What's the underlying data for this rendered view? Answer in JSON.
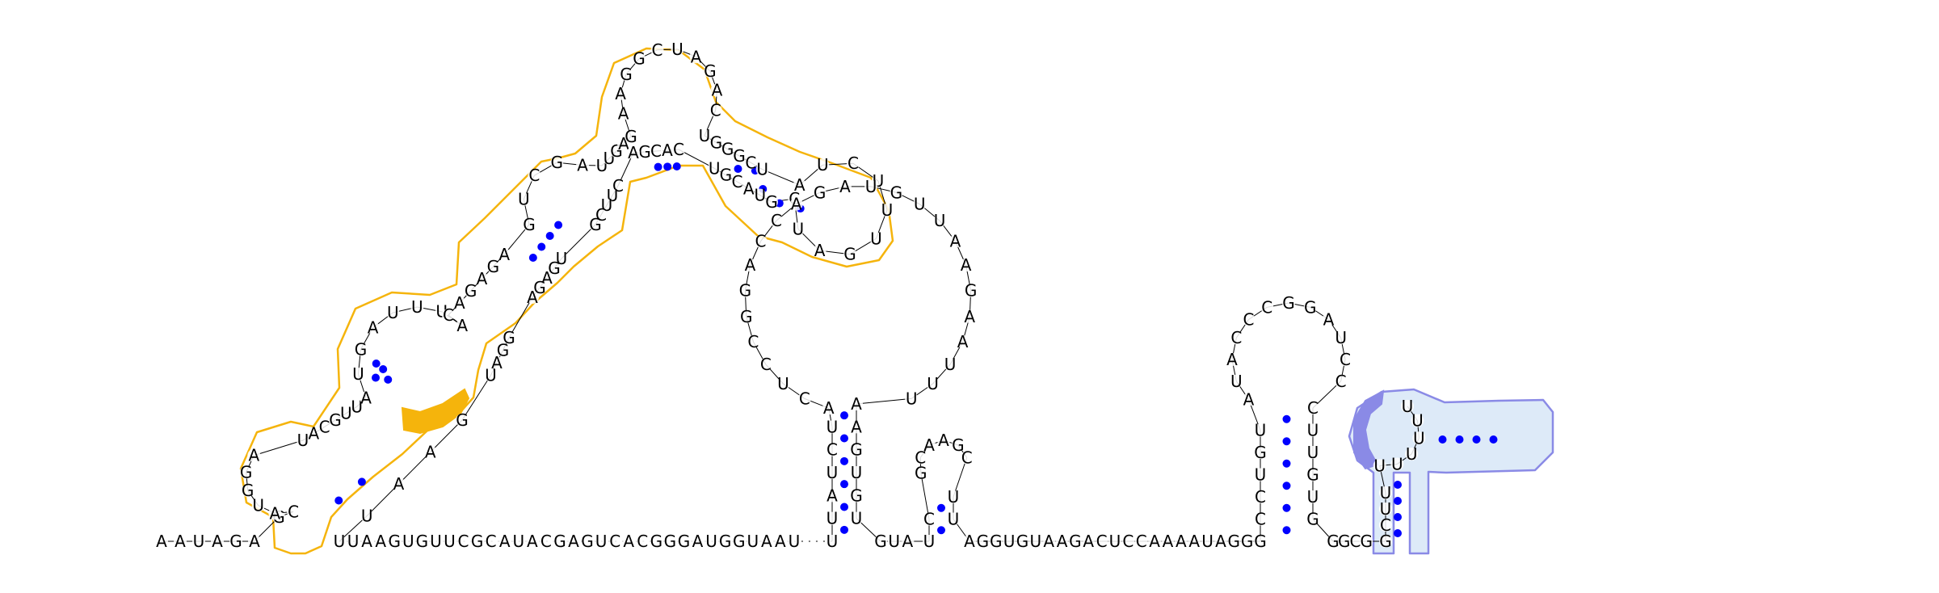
{
  "diagram": {
    "type": "rna-secondary-structure",
    "sequence": "AAUAGAGCAUGGAUACGUUAUGAUUUACAGAGAGUCGAUUGAGAAGGCUAGACUGGGCUAUCUUUGAUCGUACGUCACGACUUCGUGAGAGGAUGAAUUUAAGUGUUCGCAUACGAGUCACGGGAUGGUAAUUUAUCUACUCCGGACCAGAUGUUAAGAAUUUAAGUGUGUAUCGCAAGCUUAGGUGUAAGACUCCAAAAUAGGGCCUGUAUACCCGGAUCCCUUGUGGGCGGCUUUUUUUU",
    "colors": {
      "highlight_orange": "#F5B40C",
      "outline_orange": "#F5B40C",
      "highlight_purple": "#8A8AE6",
      "outline_purple": "#8A8AE6",
      "fill_lightblue": "#DDEAF8",
      "basepair_dot": "#0000FF",
      "backbone": "#000000"
    }
  }
}
